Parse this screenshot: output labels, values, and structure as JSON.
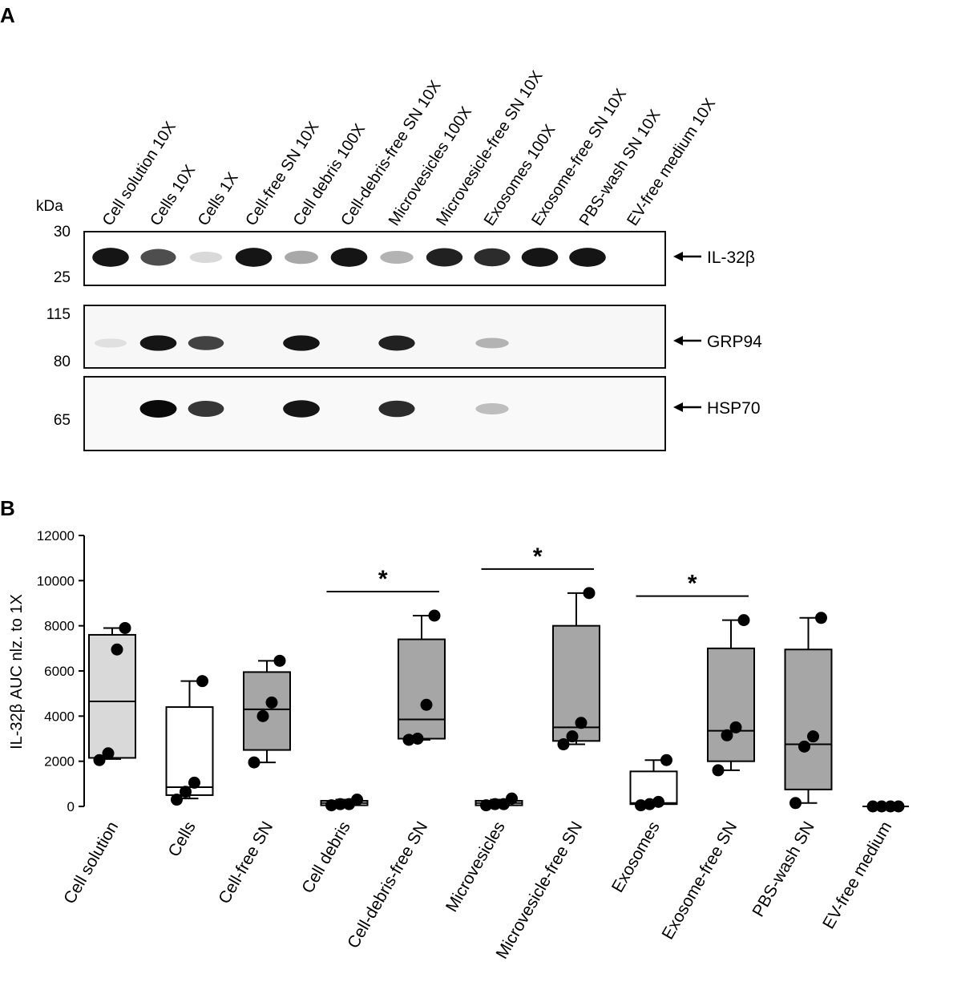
{
  "panel_a": {
    "label": "A",
    "kda_label": "kDa",
    "lanes": [
      "Cell solution 10X",
      "Cells 10X",
      "Cells 1X",
      "Cell-free SN 10X",
      "Cell debris 100X",
      "Cell-debris-free SN 10X",
      "Microvesicles 100X",
      "Microvesicle-free SN 10X",
      "Exosomes 100X",
      "Exosome-free SN 10X",
      "PBS-wash SN 10X",
      "EV-free medium 10X"
    ],
    "blots": [
      {
        "name": "IL-32β",
        "markers": [
          "30",
          "25"
        ],
        "band_intensity": [
          0.95,
          0.7,
          0.08,
          0.95,
          0.3,
          0.95,
          0.25,
          0.9,
          0.85,
          0.95,
          0.95,
          0.0
        ]
      },
      {
        "name": "GRP94",
        "markers": [
          "115",
          "80"
        ],
        "band_intensity": [
          0.05,
          0.95,
          0.75,
          0.0,
          0.95,
          0.0,
          0.9,
          0.0,
          0.25,
          0.0,
          0.0,
          0.0
        ]
      },
      {
        "name": "HSP70",
        "markers": [
          "65"
        ],
        "band_intensity": [
          0.0,
          1.0,
          0.8,
          0.0,
          0.95,
          0.0,
          0.85,
          0.0,
          0.2,
          0.0,
          0.0,
          0.0
        ]
      }
    ]
  },
  "panel_b": {
    "label": "B"
  },
  "chart_data": {
    "type": "box",
    "ylabel": "IL-32β AUC nlz. to 1X",
    "ylim": [
      0,
      12000
    ],
    "yticks": [
      "0",
      "2000",
      "4000",
      "6000",
      "8000",
      "10000",
      "12000"
    ],
    "categories": [
      "Cell solution",
      "Cells",
      "Cell-free SN",
      "Cell debris",
      "Cell-debris-free SN",
      "Microvesicles",
      "Microvesicle-free SN",
      "Exosomes",
      "Exosome-free SN",
      "PBS-wash SN",
      "EV-free medium"
    ],
    "fill_colors": [
      "#d9d9d9",
      "#ffffff",
      "#a6a6a6",
      "#ffffff",
      "#a6a6a6",
      "#ffffff",
      "#a6a6a6",
      "#ffffff",
      "#a6a6a6",
      "#a6a6a6",
      "#ffffff"
    ],
    "boxes": [
      {
        "min": 2100,
        "q1": 2150,
        "median": 4650,
        "q3": 7600,
        "max": 7900
      },
      {
        "min": 350,
        "q1": 500,
        "median": 850,
        "q3": 4400,
        "max": 5550
      },
      {
        "min": 1950,
        "q1": 2500,
        "median": 4300,
        "q3": 5950,
        "max": 6450
      },
      {
        "min": 0,
        "q1": 50,
        "median": 150,
        "q3": 250,
        "max": 300
      },
      {
        "min": 2950,
        "q1": 3000,
        "median": 3850,
        "q3": 7400,
        "max": 8450
      },
      {
        "min": 0,
        "q1": 50,
        "median": 150,
        "q3": 250,
        "max": 300
      },
      {
        "min": 2750,
        "q1": 2900,
        "median": 3500,
        "q3": 8000,
        "max": 9450
      },
      {
        "min": 50,
        "q1": 100,
        "median": 150,
        "q3": 1550,
        "max": 2050
      },
      {
        "min": 1600,
        "q1": 2000,
        "median": 3350,
        "q3": 7000,
        "max": 8250
      },
      {
        "min": 150,
        "q1": 750,
        "median": 2750,
        "q3": 6950,
        "max": 8350
      },
      {
        "min": 0,
        "q1": 0,
        "median": 0,
        "q3": 0,
        "max": 0
      }
    ],
    "points": [
      [
        2050,
        2350,
        6950,
        7900
      ],
      [
        300,
        650,
        1050,
        5550
      ],
      [
        1950,
        4000,
        4600,
        6450
      ],
      [
        50,
        100,
        100,
        300
      ],
      [
        2950,
        3000,
        4500,
        8450
      ],
      [
        50,
        100,
        100,
        350
      ],
      [
        2750,
        3100,
        3700,
        9450
      ],
      [
        50,
        100,
        200,
        2050
      ],
      [
        1600,
        3150,
        3500,
        8250
      ],
      [
        150,
        2650,
        3100,
        8350
      ],
      [
        0,
        0,
        0,
        0
      ]
    ],
    "significance": [
      {
        "from": 3,
        "to": 4,
        "label": "*"
      },
      {
        "from": 5,
        "to": 6,
        "label": "*"
      },
      {
        "from": 7,
        "to": 8,
        "label": "*"
      }
    ]
  }
}
